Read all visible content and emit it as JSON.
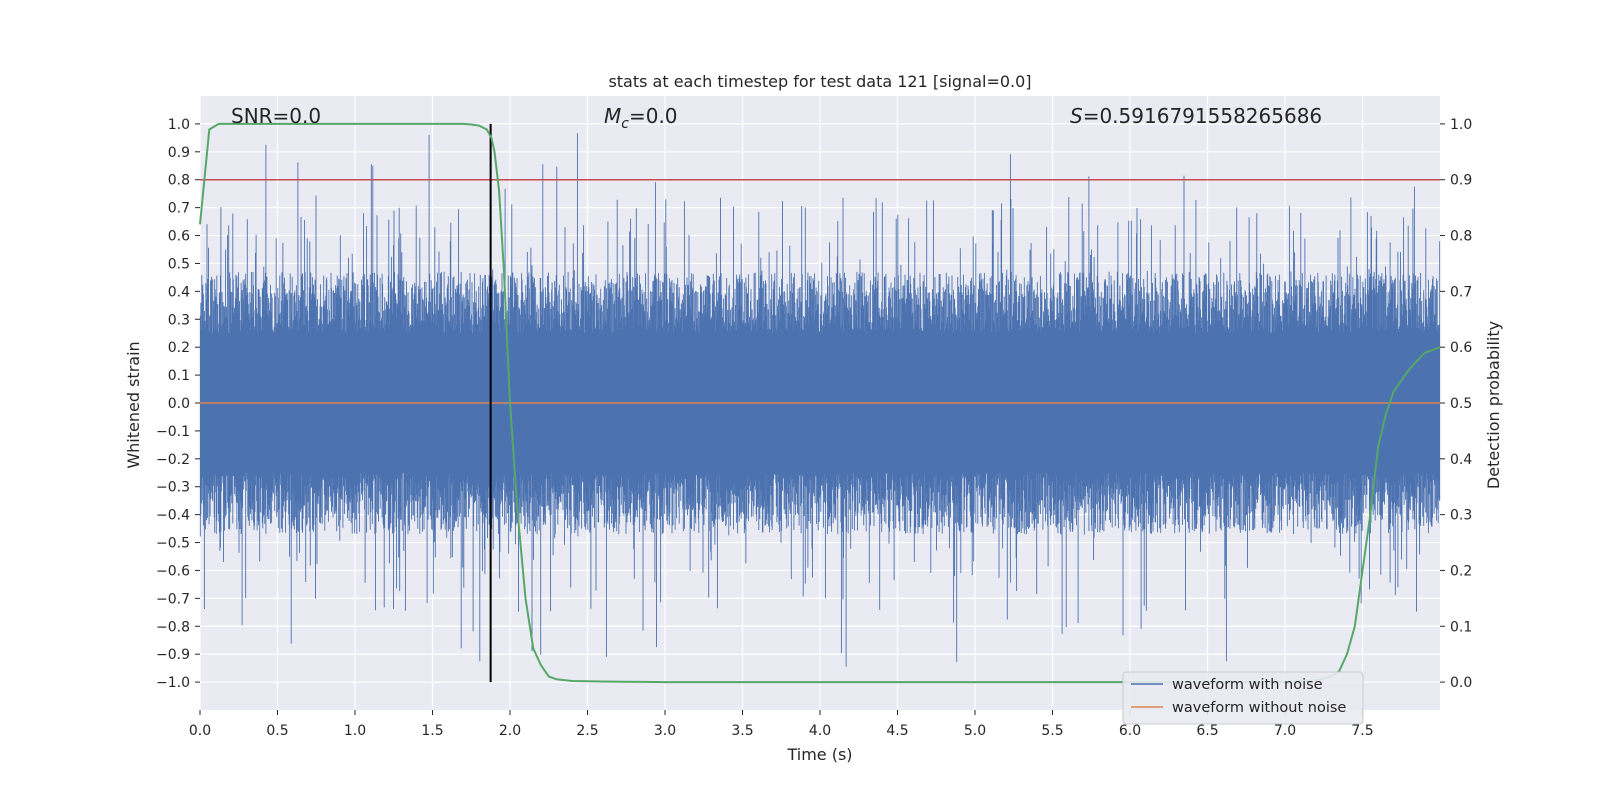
{
  "chart_data": {
    "type": "line",
    "title": "stats at each timestep for test data 121 [signal=0.0]",
    "xlabel": "Time (s)",
    "ylabel_left": "Whitened strain",
    "ylabel_right": "Detection probability",
    "xlim": [
      0.0,
      8.0
    ],
    "ylim_left": [
      -1.1,
      1.1
    ],
    "ylim_right": [
      -0.05,
      1.05
    ],
    "xticks": [
      "0.0",
      "0.5",
      "1.0",
      "1.5",
      "2.0",
      "2.5",
      "3.0",
      "3.5",
      "4.0",
      "4.5",
      "5.0",
      "5.5",
      "6.0",
      "6.5",
      "7.0",
      "7.5"
    ],
    "xtick_values": [
      0.0,
      0.5,
      1.0,
      1.5,
      2.0,
      2.5,
      3.0,
      3.5,
      4.0,
      4.5,
      5.0,
      5.5,
      6.0,
      6.5,
      7.0,
      7.5
    ],
    "yticks_left": [
      "1.0",
      "0.9",
      "0.8",
      "0.7",
      "0.6",
      "0.5",
      "0.4",
      "0.3",
      "0.2",
      "0.1",
      "0.0",
      "−0.1",
      "−0.2",
      "−0.3",
      "−0.4",
      "−0.5",
      "−0.6",
      "−0.7",
      "−0.8",
      "−0.9",
      "−1.0"
    ],
    "ytick_values_left": [
      1.0,
      0.9,
      0.8,
      0.7,
      0.6,
      0.5,
      0.4,
      0.3,
      0.2,
      0.1,
      0.0,
      -0.1,
      -0.2,
      -0.3,
      -0.4,
      -0.5,
      -0.6,
      -0.7,
      -0.8,
      -0.9,
      -1.0
    ],
    "yticks_right": [
      "1.0",
      "0.9",
      "0.8",
      "0.7",
      "0.6",
      "0.5",
      "0.4",
      "0.3",
      "0.2",
      "0.1",
      "0.0"
    ],
    "ytick_values_right": [
      1.0,
      0.9,
      0.8,
      0.7,
      0.6,
      0.5,
      0.4,
      0.3,
      0.2,
      0.1,
      0.0
    ],
    "annotations": {
      "snr": "SNR=0.0",
      "mc_symbol": "M",
      "mc_sub": "c",
      "mc_value": "=0.0",
      "s_symbol": "S",
      "s_value": "=0.5916791558265686"
    },
    "marker_time": 1.875,
    "threshold_probability": 0.9,
    "detection_probability": {
      "name": "detection probability",
      "color": "#55a868",
      "x": [
        0.0,
        0.06,
        0.12,
        0.19,
        0.25,
        0.5,
        1.0,
        1.5,
        1.6,
        1.7,
        1.75,
        1.8,
        1.85,
        1.88,
        1.9,
        1.93,
        1.96,
        2.0,
        2.05,
        2.1,
        2.15,
        2.2,
        2.25,
        2.3,
        2.4,
        2.6,
        3.0,
        4.0,
        5.0,
        6.0,
        7.0,
        7.2,
        7.3,
        7.35,
        7.4,
        7.45,
        7.5,
        7.55,
        7.6,
        7.65,
        7.7,
        7.8,
        7.9,
        8.0
      ],
      "y": [
        0.82,
        0.99,
        1.0,
        1.0,
        1.0,
        1.0,
        1.0,
        1.0,
        1.0,
        1.0,
        0.999,
        0.997,
        0.99,
        0.975,
        0.95,
        0.88,
        0.74,
        0.5,
        0.3,
        0.15,
        0.06,
        0.03,
        0.01,
        0.005,
        0.002,
        0.001,
        0.0,
        0.0,
        0.0,
        0.0,
        0.0,
        0.003,
        0.01,
        0.02,
        0.05,
        0.1,
        0.2,
        0.3,
        0.42,
        0.48,
        0.52,
        0.56,
        0.59,
        0.6
      ]
    },
    "series": [
      {
        "name": "waveform with noise",
        "color": "#4c72b0"
      },
      {
        "name": "waveform without noise",
        "color": "#dd8452"
      }
    ],
    "legend_position": "lower-right"
  }
}
